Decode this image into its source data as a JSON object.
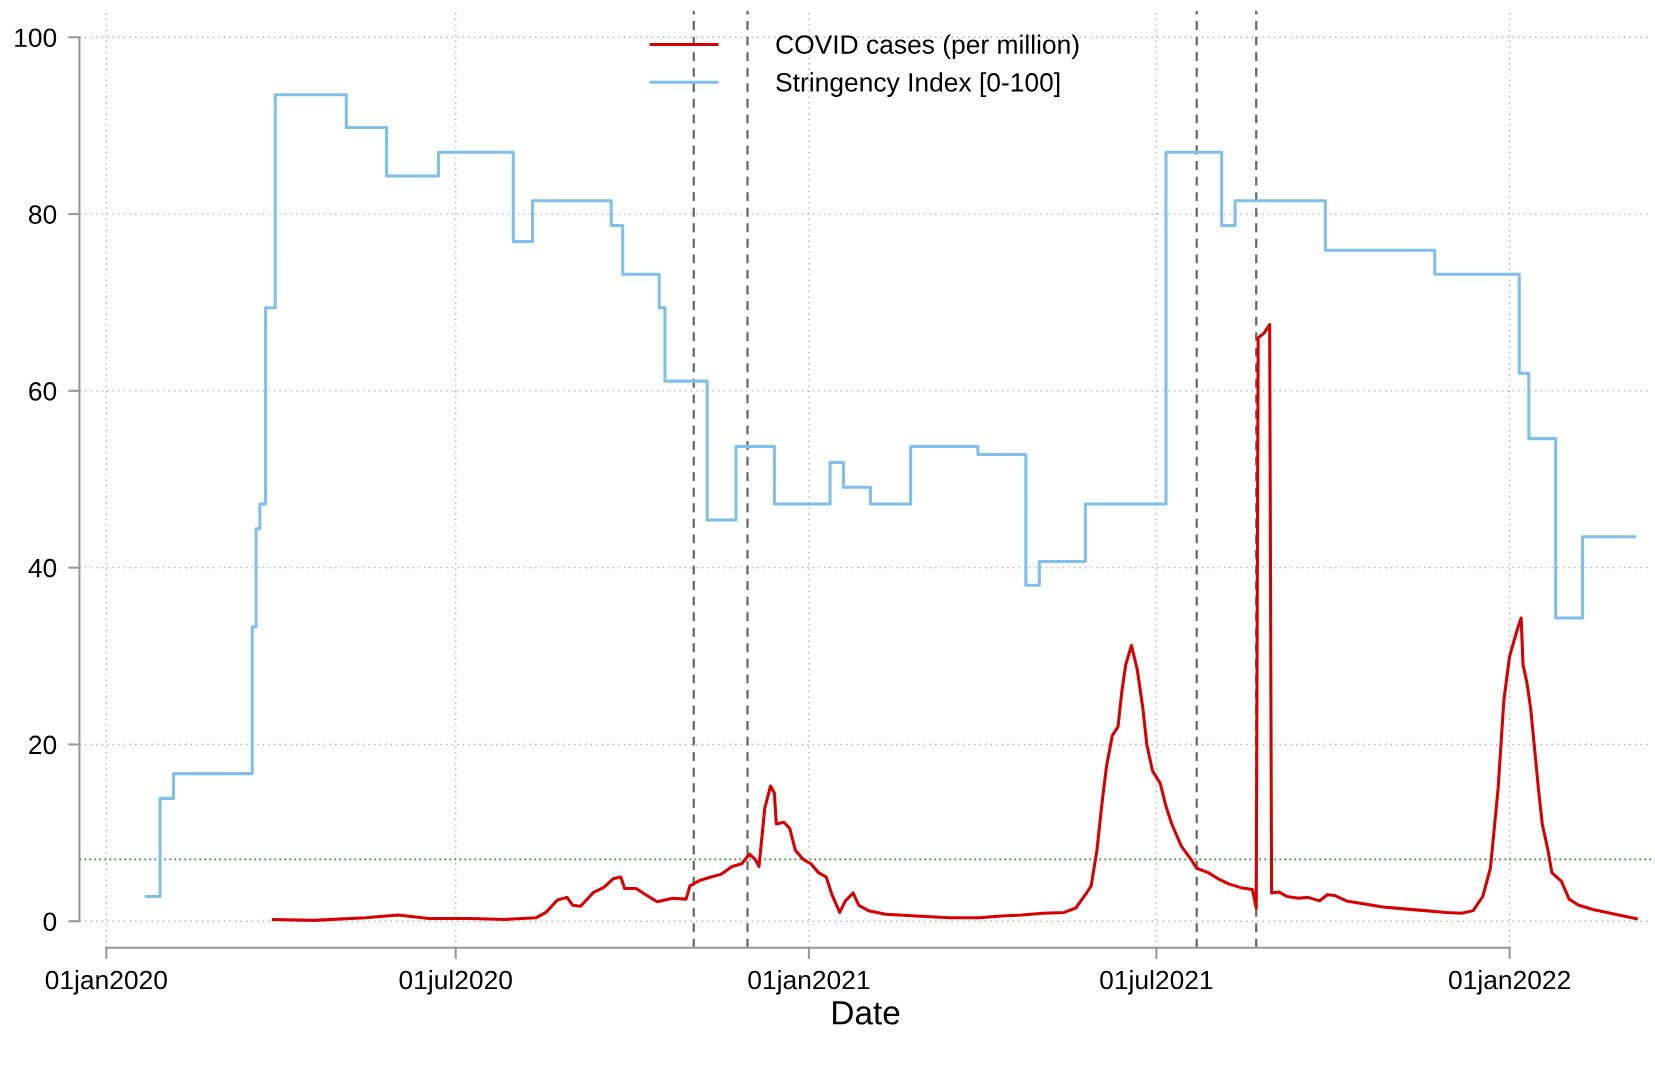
{
  "chart_data": {
    "type": "line",
    "xlabel": "Date",
    "xlim": [
      "2019-12-18",
      "2022-03-16"
    ],
    "ylim": [
      -3,
      103
    ],
    "xticks": [
      {
        "value": "2020-01-01",
        "label": "01jan2020"
      },
      {
        "value": "2020-07-01",
        "label": "01jul2020"
      },
      {
        "value": "2021-01-01",
        "label": "01jan2021"
      },
      {
        "value": "2021-07-01",
        "label": "01jul2021"
      },
      {
        "value": "2022-01-01",
        "label": "01jan2022"
      }
    ],
    "yticks": [
      0,
      20,
      40,
      60,
      80,
      100
    ],
    "grid": true,
    "legend": "top",
    "line_style": "solid",
    "marker": "none",
    "ref_lines": [
      {
        "axis": "x",
        "value": "2020-11-02",
        "color": "#666666",
        "line_style": "dashed"
      },
      {
        "axis": "x",
        "value": "2020-11-30",
        "color": "#666666",
        "line_style": "dashed"
      },
      {
        "axis": "x",
        "value": "2021-07-22",
        "color": "#666666",
        "line_style": "dashed"
      },
      {
        "axis": "x",
        "value": "2021-08-22",
        "color": "#666666",
        "line_style": "dashed"
      },
      {
        "axis": "y",
        "value": 7,
        "color": "#2e8b2e",
        "line_style": "dotted"
      }
    ],
    "series": [
      {
        "name": "COVID cases (per million)",
        "color": "#d40000",
        "x": [
          "2020-03-28",
          "2020-04-18",
          "2020-05-15",
          "2020-06-01",
          "2020-06-17",
          "2020-07-09",
          "2020-07-26",
          "2020-08-12",
          "2020-08-17",
          "2020-08-23",
          "2020-08-28",
          "2020-08-31",
          "2020-09-04",
          "2020-09-11",
          "2020-09-16",
          "2020-09-21",
          "2020-09-25",
          "2020-09-27",
          "2020-10-03",
          "2020-10-08",
          "2020-10-14",
          "2020-10-22",
          "2020-10-29",
          "2020-10-31",
          "2020-11-05",
          "2020-11-11",
          "2020-11-16",
          "2020-11-22",
          "2020-11-27",
          "2020-12-01",
          "2020-12-04",
          "2020-12-06",
          "2020-12-09",
          "2020-12-12",
          "2020-12-14",
          "2020-12-15",
          "2020-12-19",
          "2020-12-22",
          "2020-12-25",
          "2020-12-29",
          "2021-01-02",
          "2021-01-06",
          "2021-01-10",
          "2021-01-13",
          "2021-01-17",
          "2021-01-20",
          "2021-01-24",
          "2021-01-27",
          "2021-02-01",
          "2021-02-10",
          "2021-02-26",
          "2021-03-15",
          "2021-03-31",
          "2021-04-11",
          "2021-04-22",
          "2021-05-03",
          "2021-05-14",
          "2021-05-20",
          "2021-05-25",
          "2021-05-28",
          "2021-05-31",
          "2021-06-03",
          "2021-06-05",
          "2021-06-08",
          "2021-06-11",
          "2021-06-13",
          "2021-06-15",
          "2021-06-18",
          "2021-06-21",
          "2021-06-24",
          "2021-06-26",
          "2021-06-29",
          "2021-07-03",
          "2021-07-06",
          "2021-07-09",
          "2021-07-11",
          "2021-07-14",
          "2021-07-19",
          "2021-07-22",
          "2021-07-28",
          "2021-08-03",
          "2021-08-08",
          "2021-08-14",
          "2021-08-20",
          "2021-08-22",
          "2021-08-23",
          "2021-08-26",
          "2021-08-29",
          "2021-08-30",
          "2021-09-03",
          "2021-09-07",
          "2021-09-13",
          "2021-09-18",
          "2021-09-24",
          "2021-09-28",
          "2021-10-02",
          "2021-10-08",
          "2021-10-16",
          "2021-10-27",
          "2021-11-07",
          "2021-11-18",
          "2021-11-29",
          "2021-12-07",
          "2021-12-13",
          "2021-12-18",
          "2021-12-22",
          "2021-12-26",
          "2021-12-29",
          "2022-01-01",
          "2022-01-05",
          "2022-01-07",
          "2022-01-08",
          "2022-01-10",
          "2022-01-12",
          "2022-01-14",
          "2022-01-16",
          "2022-01-18",
          "2022-01-21",
          "2022-01-23",
          "2022-01-28",
          "2022-02-01",
          "2022-02-06",
          "2022-02-14",
          "2022-02-25",
          "2022-03-08"
        ],
        "values": [
          0.2,
          0.1,
          0.4,
          0.7,
          0.3,
          0.3,
          0.2,
          0.4,
          1,
          2.4,
          2.7,
          1.8,
          1.7,
          3.3,
          3.8,
          4.8,
          5,
          3.7,
          3.7,
          3,
          2.2,
          2.6,
          2.5,
          4,
          4.6,
          5,
          5.3,
          6.2,
          6.5,
          7.6,
          7,
          6.2,
          12.8,
          15.3,
          14.5,
          11,
          11.2,
          10.5,
          8,
          7,
          6.5,
          5.5,
          5,
          3,
          1,
          2.3,
          3.2,
          1.8,
          1.2,
          0.8,
          0.6,
          0.4,
          0.4,
          0.6,
          0.7,
          0.9,
          1,
          1.5,
          3,
          4,
          8,
          14,
          17.5,
          21,
          22,
          26,
          29,
          31.2,
          28.5,
          24,
          20,
          17,
          15.6,
          13,
          11,
          10,
          8.5,
          7,
          6,
          5.5,
          4.7,
          4.2,
          3.8,
          3.6,
          1.5,
          66,
          66.5,
          67.5,
          3.2,
          3.3,
          2.8,
          2.6,
          2.7,
          2.3,
          3,
          2.9,
          2.3,
          2,
          1.6,
          1.4,
          1.2,
          1,
          0.9,
          1.2,
          2.8,
          6,
          15,
          25,
          30,
          33,
          34.3,
          29,
          27,
          24,
          19.5,
          15,
          11,
          8,
          5.5,
          4.5,
          2.5,
          1.8,
          1.3,
          0.8,
          0.3
        ]
      },
      {
        "name": "Stringency Index [0-100]",
        "color": "#7fbfe8",
        "type": "step",
        "x": [
          "2020-01-22",
          "2020-01-29",
          "2020-02-05",
          "2020-03-17",
          "2020-03-19",
          "2020-03-21",
          "2020-03-24",
          "2020-03-29",
          "2020-05-05",
          "2020-05-26",
          "2020-06-22",
          "2020-07-31",
          "2020-08-10",
          "2020-09-20",
          "2020-09-26",
          "2020-10-15",
          "2020-10-18",
          "2020-11-09",
          "2020-11-24",
          "2020-12-14",
          "2021-01-12",
          "2021-01-19",
          "2021-02-02",
          "2021-02-23",
          "2021-03-30",
          "2021-04-24",
          "2021-05-01",
          "2021-05-25",
          "2021-07-06",
          "2021-08-04",
          "2021-08-11",
          "2021-09-27",
          "2021-11-23",
          "2022-01-06",
          "2022-01-11",
          "2022-01-25",
          "2022-02-08",
          "2022-03-07"
        ],
        "values": [
          2.8,
          13.9,
          16.7,
          33.3,
          44.4,
          47.2,
          69.4,
          93.5,
          89.8,
          84.3,
          87,
          76.9,
          81.5,
          78.7,
          73.2,
          69.4,
          61.1,
          45.4,
          53.7,
          47.2,
          51.9,
          49.1,
          47.2,
          53.7,
          52.8,
          38,
          40.7,
          47.2,
          87,
          78.7,
          81.5,
          75.9,
          73.2,
          62,
          54.6,
          34.3,
          43.5,
          43.5
        ]
      }
    ]
  }
}
